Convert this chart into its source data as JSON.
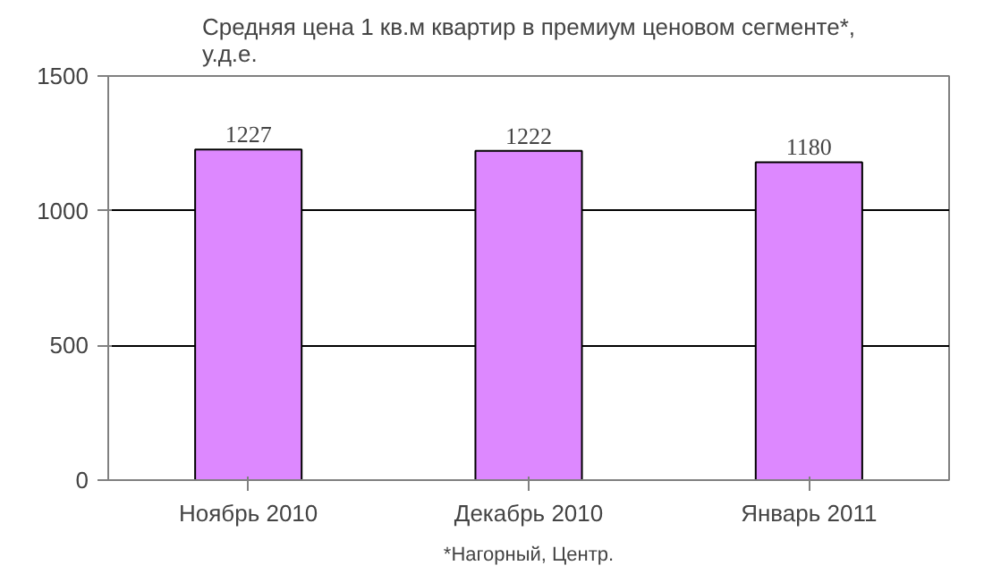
{
  "chart_data": {
    "type": "bar",
    "title": "Средняя цена 1 кв.м квартир в премиум ценовом сегменте*,\nу.д.е.",
    "categories": [
      "Ноябрь 2010",
      "Декабрь 2010",
      "Январь 2011"
    ],
    "values": [
      1227,
      1222,
      1180
    ],
    "color": "#dd88ff",
    "ylim": [
      0,
      1500
    ],
    "yticks": [
      0,
      500,
      1000,
      1500
    ],
    "grid": "y",
    "data_labels": true,
    "annotations": [
      "*Нагорный, Центр."
    ]
  }
}
